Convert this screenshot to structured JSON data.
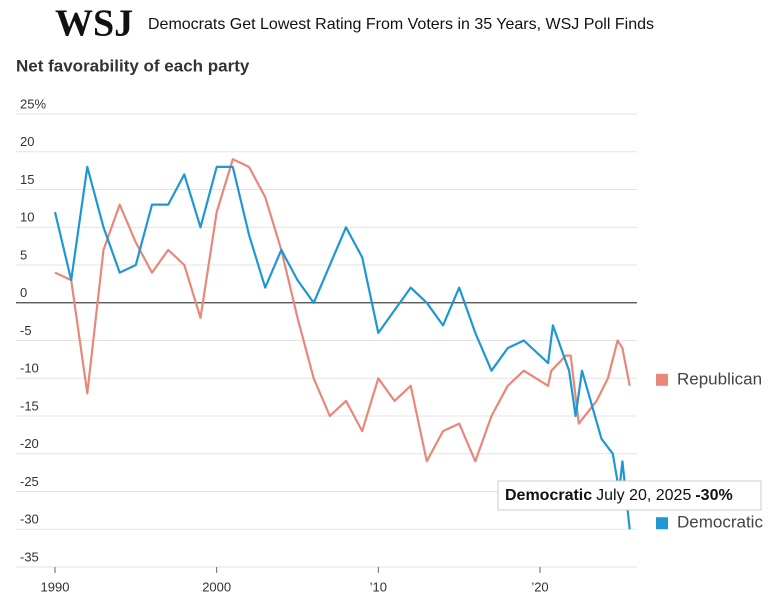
{
  "logo": "WSJ",
  "headline": "Democrats Get Lowest Rating From Voters in 35 Years, WSJ Poll Finds",
  "chart_data": {
    "type": "line",
    "title": "Net favorability of each party",
    "xlim": [
      1990,
      2026
    ],
    "xticks": [
      1990,
      2000,
      {
        "value": 2010,
        "label": "’10"
      },
      {
        "value": 2020,
        "label": "’20"
      }
    ],
    "ylim": [
      -35,
      25
    ],
    "yticks": [
      {
        "value": 25,
        "label": "25%"
      },
      20,
      15,
      10,
      5,
      0,
      -5,
      -10,
      -15,
      -20,
      -25,
      -30,
      -35
    ],
    "grid": true,
    "series": [
      {
        "name": "Republican",
        "color": "#e8877a",
        "x": [
          1990,
          1991,
          1992,
          1993,
          1994,
          1995,
          1996,
          1997,
          1998,
          1999,
          2000,
          2001,
          2002,
          2003,
          2004,
          2005,
          2006,
          2007,
          2008,
          2009,
          2010,
          2011,
          2012,
          2013,
          2014,
          2015,
          2016,
          2017,
          2018,
          2019,
          2020.5,
          2020.7,
          2021.6,
          2021.9,
          2022.4,
          2023.5,
          2024.2,
          2024.8,
          2025.1,
          2025.55
        ],
        "values": [
          4,
          3,
          -12,
          7,
          13,
          8,
          4,
          7,
          5,
          -2,
          12,
          19,
          18,
          14,
          7,
          -2,
          -10,
          -15,
          -13,
          -17,
          -10,
          -13,
          -11,
          -21,
          -17,
          -16,
          -21,
          -15,
          -11,
          -9,
          -11,
          -9,
          -7,
          -7,
          -16,
          -13,
          -10,
          -5,
          -6,
          -11
        ]
      },
      {
        "name": "Democratic",
        "color": "#1f97d4",
        "x": [
          1990,
          1991,
          1992,
          1993,
          1994,
          1995,
          1996,
          1997,
          1998,
          1999,
          2000,
          2001,
          2002,
          2003,
          2004,
          2005,
          2006,
          2008,
          2009,
          2010,
          2012,
          2013,
          2014,
          2015,
          2016,
          2017,
          2018,
          2019,
          2020.5,
          2020.8,
          2021.8,
          2022.2,
          2022.6,
          2023.8,
          2024.5,
          2024.9,
          2025.1,
          2025.55
        ],
        "values": [
          12,
          3,
          18,
          10,
          4,
          5,
          13,
          13,
          17,
          10,
          18,
          18,
          9,
          2,
          7,
          3,
          0,
          10,
          6,
          -4,
          2,
          0,
          -3,
          2,
          -4,
          -9,
          -6,
          -5,
          -8,
          -3,
          -9,
          -15,
          -9,
          -18,
          -20,
          -25,
          -21,
          -30
        ]
      }
    ],
    "tooltip": {
      "name": "Democratic",
      "date": "July 20, 2025",
      "label": "-30%"
    }
  }
}
